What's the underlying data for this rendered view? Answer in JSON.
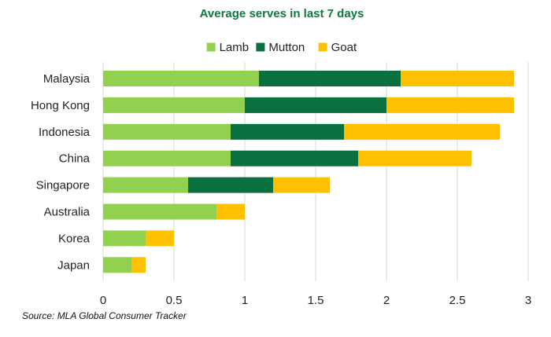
{
  "chart_data": {
    "type": "bar",
    "orientation": "horizontal",
    "stacked": true,
    "title": "Average serves in last 7 days",
    "categories": [
      "Malaysia",
      "Hong Kong",
      "Indonesia",
      "China",
      "Singapore",
      "Australia",
      "Korea",
      "Japan"
    ],
    "series": [
      {
        "name": "Lamb",
        "color": "#92d050",
        "values": [
          1.1,
          1.0,
          0.9,
          0.9,
          0.6,
          0.8,
          0.3,
          0.2
        ]
      },
      {
        "name": "Mutton",
        "color": "#0a7040",
        "values": [
          1.0,
          1.0,
          0.8,
          0.9,
          0.6,
          0.0,
          0.0,
          0.0
        ]
      },
      {
        "name": "Goat",
        "color": "#ffc000",
        "values": [
          0.8,
          0.9,
          1.1,
          0.8,
          0.4,
          0.2,
          0.2,
          0.1
        ]
      }
    ],
    "xlim": [
      0,
      3
    ],
    "xticks": [
      0,
      0.5,
      1,
      1.5,
      2,
      2.5,
      3
    ],
    "xtick_labels": [
      "0",
      "0.5",
      "1",
      "1.5",
      "2",
      "2.5",
      "3"
    ],
    "grid": true,
    "legend_position": "top"
  },
  "source": "Source: MLA Global Consumer Tracker"
}
